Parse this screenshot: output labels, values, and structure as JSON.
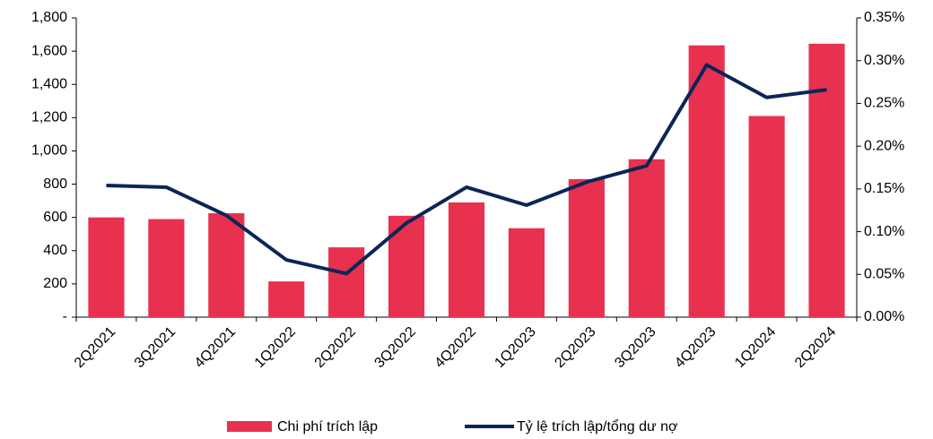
{
  "chart_data": {
    "type": "bar_line",
    "categories": [
      "2Q2021",
      "3Q2021",
      "4Q2021",
      "1Q2022",
      "2Q2022",
      "3Q2022",
      "4Q2022",
      "1Q2023",
      "2Q2023",
      "3Q2023",
      "4Q2023",
      "1Q2024",
      "2Q2024"
    ],
    "series": [
      {
        "name": "Chi phí trích lập",
        "type": "bar",
        "color": "#e8304f",
        "values": [
          600,
          590,
          625,
          215,
          420,
          610,
          690,
          535,
          830,
          950,
          1635,
          1210,
          1645
        ]
      },
      {
        "name": "Tỷ lệ trích lập/tổng dư nợ",
        "type": "line",
        "axis": "y2",
        "color": "#0c2557",
        "values": [
          0.154,
          0.152,
          0.119,
          0.067,
          0.051,
          0.11,
          0.152,
          0.131,
          0.158,
          0.177,
          0.295,
          0.257,
          0.266
        ]
      }
    ],
    "ylim": [
      0,
      1800
    ],
    "yticks": [
      {
        "value": 0,
        "label": "-"
      },
      200,
      400,
      600,
      800,
      {
        "value": 1000,
        "label": "1,000"
      },
      {
        "value": 1200,
        "label": "1,200"
      },
      {
        "value": 1400,
        "label": "1,400"
      },
      {
        "value": 1600,
        "label": "1,600"
      },
      {
        "value": 1800,
        "label": "1,800"
      }
    ],
    "y2lim": [
      0,
      0.35
    ],
    "y2ticks": [
      {
        "value": 0,
        "label": "0.00%"
      },
      {
        "value": 0.05,
        "label": "0.05%"
      },
      {
        "value": 0.1,
        "label": "0.10%"
      },
      {
        "value": 0.15,
        "label": "0.15%"
      },
      {
        "value": 0.2,
        "label": "0.20%"
      },
      {
        "value": 0.25,
        "label": "0.25%"
      },
      {
        "value": 0.3,
        "label": "0.30%"
      },
      {
        "value": 0.35,
        "label": "0.35%"
      }
    ],
    "grid": false,
    "legend": "bottom"
  }
}
